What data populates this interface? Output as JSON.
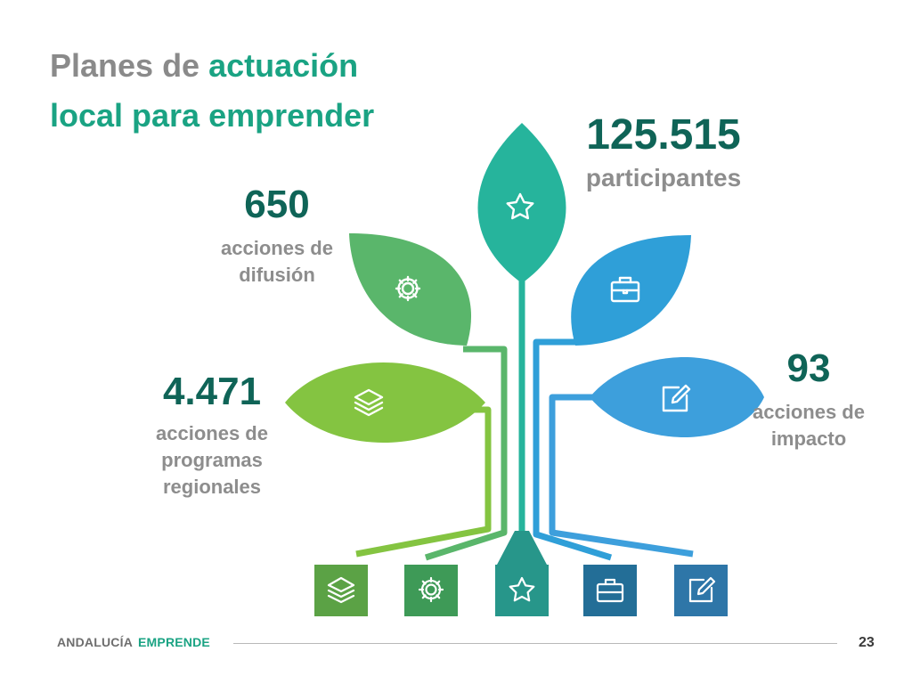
{
  "title": {
    "part1": "Planes de",
    "part2": "actuación",
    "line2": "local para emprender"
  },
  "stats": {
    "participantes": {
      "value": "125.515",
      "label": "participantes"
    },
    "difusion": {
      "value": "650",
      "label_line1": "acciones de",
      "label_line2": "difusión"
    },
    "programas": {
      "value": "4.471",
      "label_line1": "acciones de",
      "label_line2": "programas",
      "label_line3": "regionales"
    },
    "impacto": {
      "value": "93",
      "label_line1": "acciones de",
      "label_line2": "impacto"
    }
  },
  "footer": {
    "brand_part1": "ANDALUCÍA",
    "brand_part2": "EMPRENDE",
    "page_number": "23"
  },
  "colors": {
    "title_gray": "#8a8a8a",
    "title_green": "#1aa383",
    "number_dark_teal": "#0f6457",
    "leaf_light_green": "#84c441",
    "leaf_green": "#5ab66b",
    "leaf_teal": "#26b49c",
    "leaf_blue": "#2f9fd8",
    "leaf_light_blue": "#3d9fdc",
    "box_green": "#5ba245",
    "box_dark_green": "#3e9a57",
    "box_teal": "#27968a",
    "box_dark_blue": "#236e97",
    "box_blue": "#2e76a8"
  },
  "icons": [
    "layers-icon",
    "gear-icon",
    "star-icon",
    "briefcase-icon",
    "edit-icon"
  ]
}
